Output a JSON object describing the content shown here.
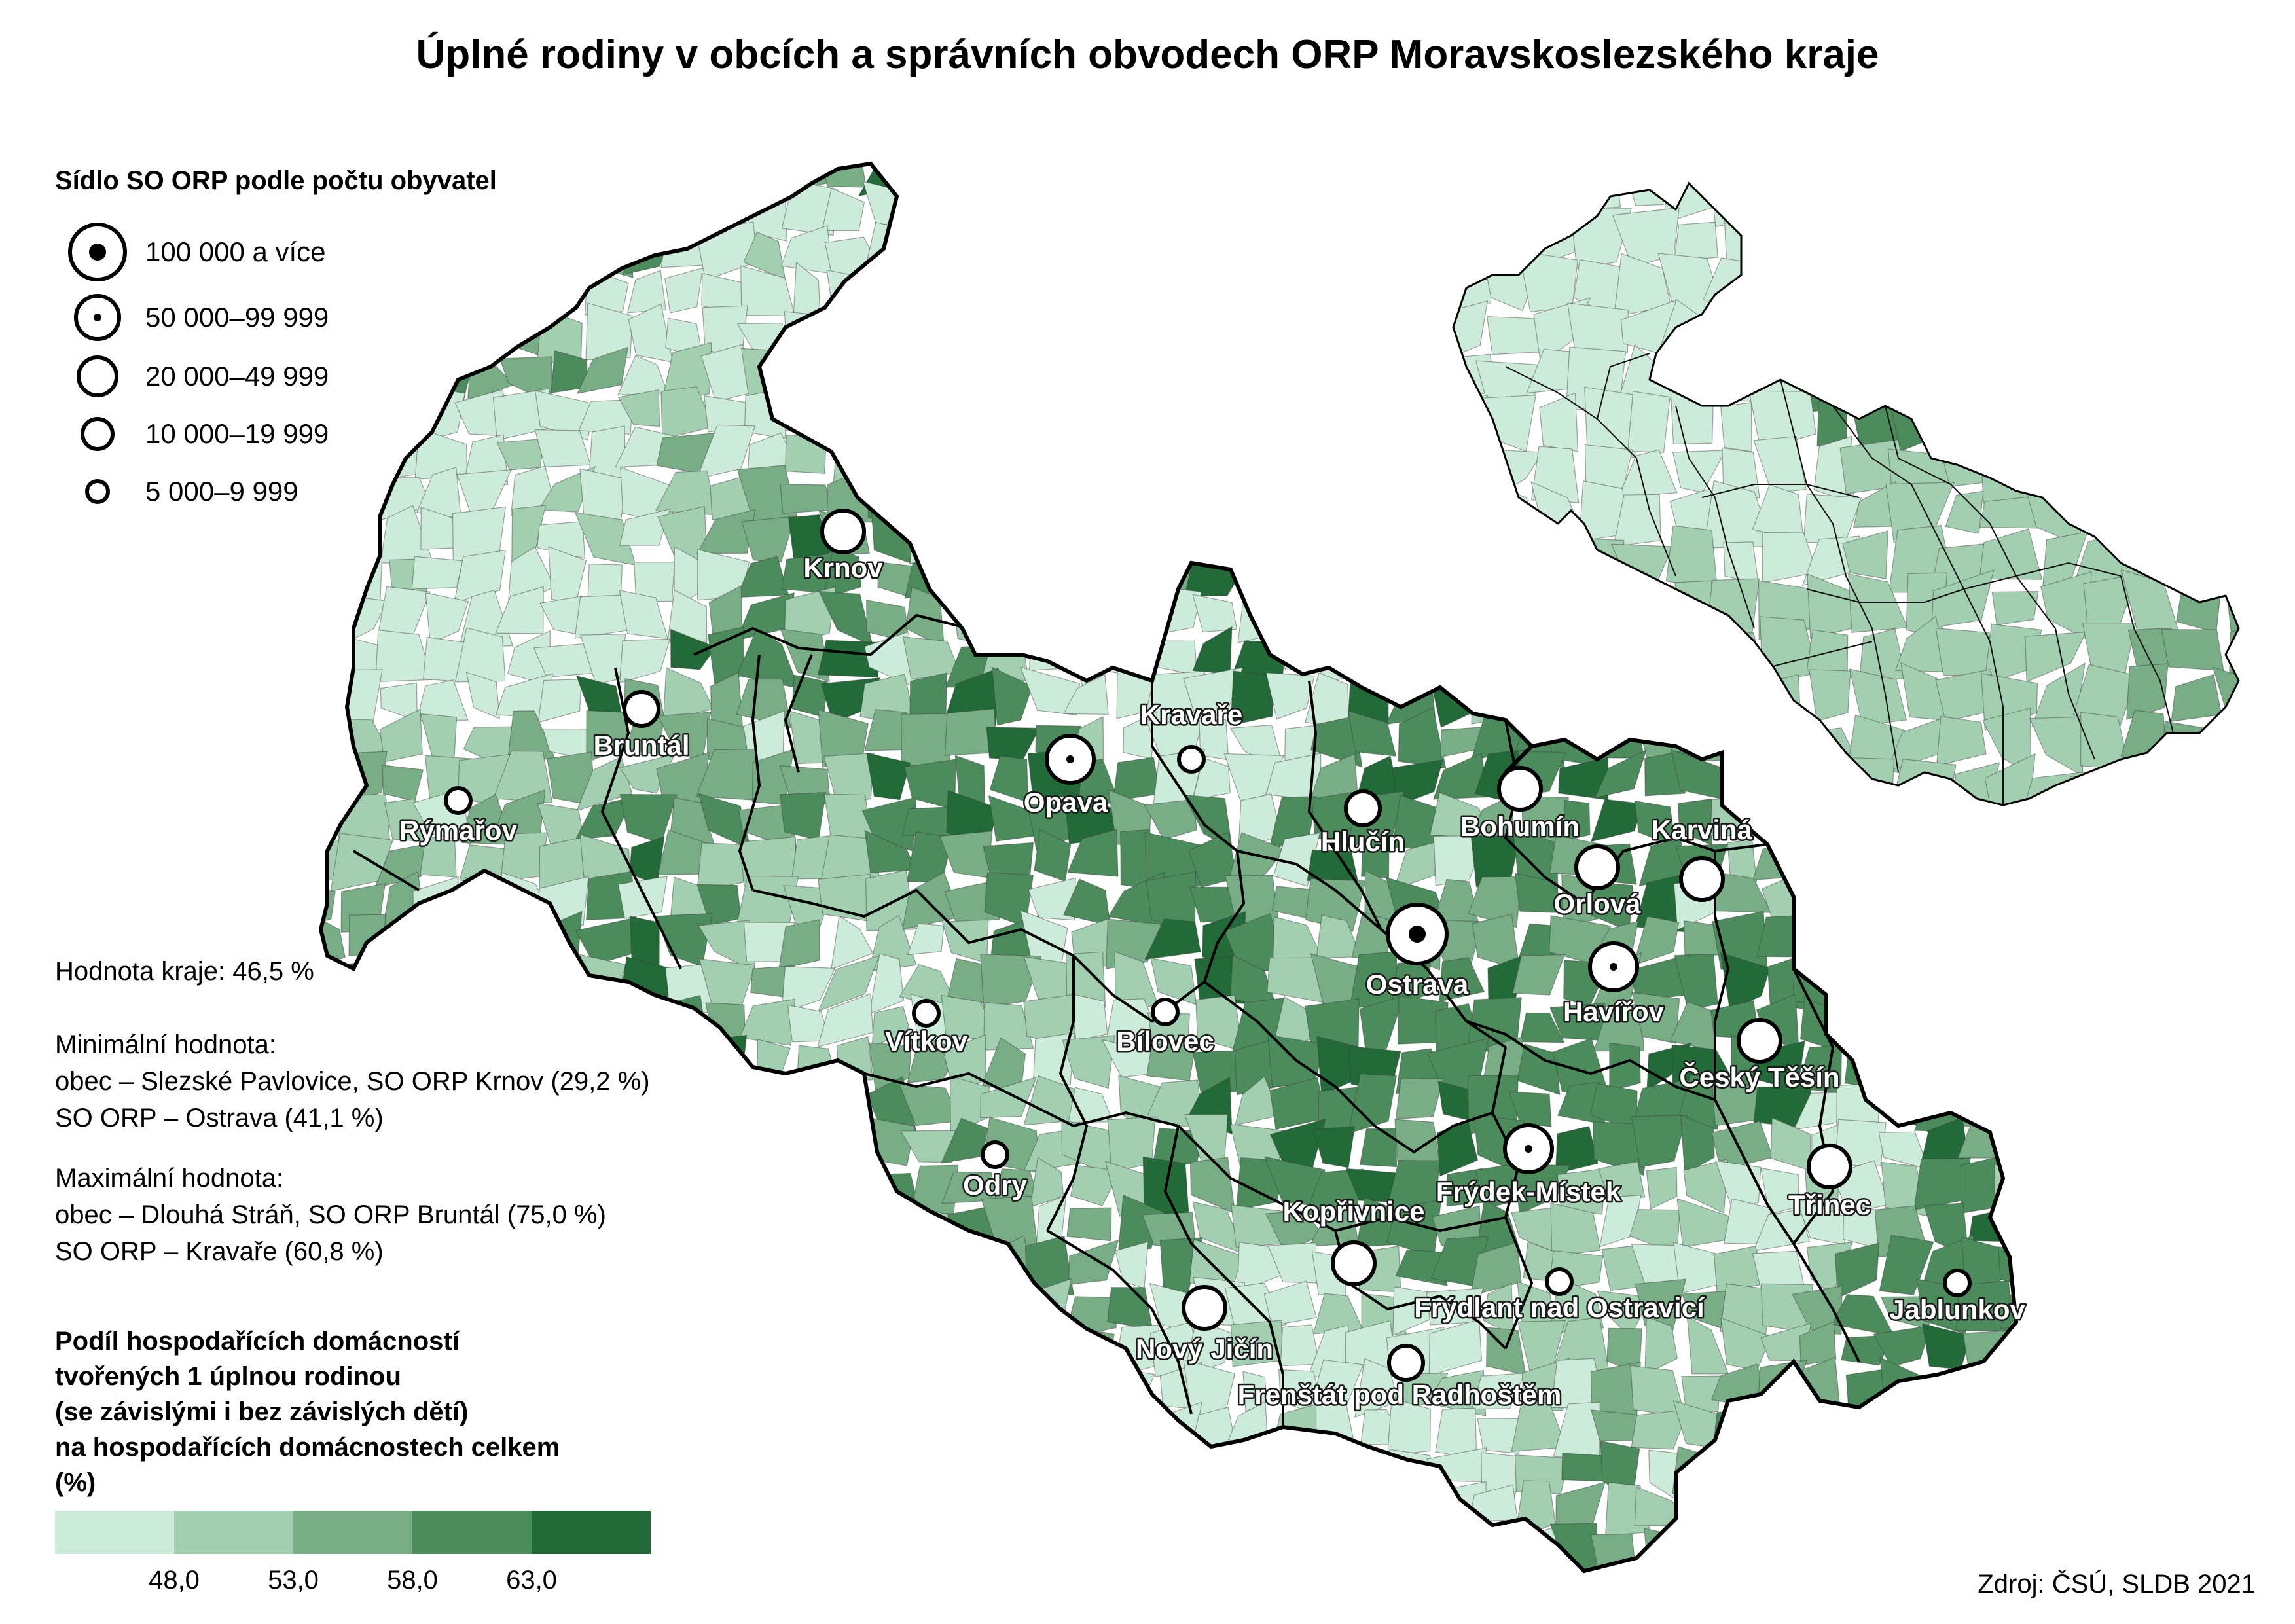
{
  "title": "Úplné rodiny v obcích a správních obvodech ORP Moravskoslezského kraje",
  "size_legend": {
    "title": "Sídlo SO ORP podle počtu obyvatel",
    "items": [
      {
        "label": "100 000 a více",
        "class": "xl"
      },
      {
        "label": "50 000–99 999",
        "class": "l"
      },
      {
        "label": "20 000–49 999",
        "class": "m"
      },
      {
        "label": "10 000–19 999",
        "class": "s"
      },
      {
        "label": "5 000–9 999",
        "class": "xs"
      }
    ]
  },
  "stats": {
    "region_value": "Hodnota kraje: 46,5 %",
    "min_title": "Minimální hodnota:",
    "min_obec": "obec – Slezské Pavlovice, SO ORP Krnov (29,2 %)",
    "min_orp": "SO ORP – Ostrava (41,1 %)",
    "max_title": "Maximální hodnota:",
    "max_obec": "obec – Dlouhá Stráň, SO ORP Bruntál (75,0 %)",
    "max_orp": "SO ORP – Kravaře (60,8 %)"
  },
  "color_legend": {
    "title_lines": [
      "Podíl hospodařících domácností",
      "tvořených 1 úplnou rodinou",
      "(se závislými i bez závislých dětí)",
      "na hospodařících domácnostech celkem",
      "(%)"
    ],
    "colors": [
      "#cdebd9",
      "#a3cfb1",
      "#78ad86",
      "#4c8c5c",
      "#226a38"
    ],
    "breaks": [
      "48,0",
      "53,0",
      "58,0",
      "63,0"
    ]
  },
  "source": "Zdroj: ČSÚ, SLDB 2021",
  "cities": [
    {
      "name": "Krnov",
      "size": "m"
    },
    {
      "name": "Bruntál",
      "size": "s"
    },
    {
      "name": "Rýmařov",
      "size": "xs"
    },
    {
      "name": "Opava",
      "size": "l"
    },
    {
      "name": "Kravaře",
      "size": "xs"
    },
    {
      "name": "Hlučín",
      "size": "s"
    },
    {
      "name": "Bohumín",
      "size": "m"
    },
    {
      "name": "Karviná",
      "size": "m"
    },
    {
      "name": "Orlová",
      "size": "m"
    },
    {
      "name": "Ostrava",
      "size": "xl"
    },
    {
      "name": "Havířov",
      "size": "l"
    },
    {
      "name": "Český Těšín",
      "size": "m"
    },
    {
      "name": "Vítkov",
      "size": "xs"
    },
    {
      "name": "Bílovec",
      "size": "xs"
    },
    {
      "name": "Odry",
      "size": "xs"
    },
    {
      "name": "Frýdek-Místek",
      "size": "l"
    },
    {
      "name": "Třinec",
      "size": "m"
    },
    {
      "name": "Kopřivnice",
      "size": "m"
    },
    {
      "name": "Frýdlant nad Ostravicí",
      "size": "xs"
    },
    {
      "name": "Jablunkov",
      "size": "xs"
    },
    {
      "name": "Nový Jičín",
      "size": "m"
    },
    {
      "name": "Frenštát pod Radhoštěm",
      "size": "s"
    }
  ]
}
